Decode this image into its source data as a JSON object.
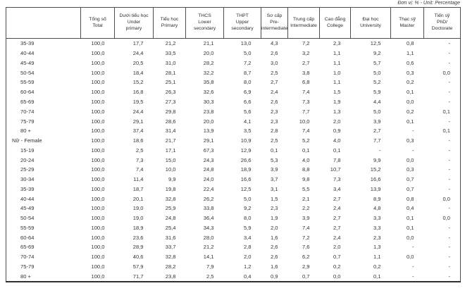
{
  "unit_note": "Đơn vị: % - Unit: Percentage",
  "table": {
    "corner_label": "",
    "columns": [
      {
        "vi": "Tổng số",
        "en": "Total"
      },
      {
        "vi": "Dưới tiểu học",
        "en": "Under primary"
      },
      {
        "vi": "Tiểu học",
        "en": "Primary"
      },
      {
        "vi": "THCS",
        "en": "Lower secondary"
      },
      {
        "vi": "THPT",
        "en": "Upper secondary"
      },
      {
        "vi": "Sơ cấp",
        "en": "Pre-intermediate"
      },
      {
        "vi": "Trung cấp",
        "en": "Intermediate"
      },
      {
        "vi": "Cao đẳng",
        "en": "College"
      },
      {
        "vi": "Đại học",
        "en": "University"
      },
      {
        "vi": "Thạc sỹ",
        "en": "Master"
      },
      {
        "vi": "Tiến sỹ",
        "en": "PhD/ Doctorate"
      }
    ],
    "rows": [
      {
        "label": "35-39",
        "values": [
          "100,0",
          "17,7",
          "21,2",
          "21,1",
          "13,0",
          "4,3",
          "7,2",
          "2,3",
          "12,5",
          "0,8",
          "-"
        ]
      },
      {
        "label": "40-44",
        "values": [
          "100,0",
          "24,4",
          "33,5",
          "20,0",
          "5,0",
          "2,6",
          "3,2",
          "1,1",
          "9,2",
          "1,1",
          "-"
        ]
      },
      {
        "label": "45-49",
        "values": [
          "100,0",
          "20,5",
          "31,0",
          "28,2",
          "7,2",
          "3,0",
          "2,7",
          "1,1",
          "5,7",
          "0,6",
          "-"
        ]
      },
      {
        "label": "50-54",
        "values": [
          "100,0",
          "18,4",
          "28,1",
          "32,2",
          "8,7",
          "2,5",
          "3,8",
          "1,0",
          "5,0",
          "0,3",
          "0,0"
        ]
      },
      {
        "label": "55-59",
        "values": [
          "100,0",
          "15,2",
          "25,1",
          "35,8",
          "8,0",
          "2,7",
          "6,8",
          "1,1",
          "5,2",
          "0,2",
          "-"
        ]
      },
      {
        "label": "60-64",
        "values": [
          "100,0",
          "16,8",
          "26,3",
          "32,6",
          "6,9",
          "2,4",
          "7,4",
          "1,5",
          "5,9",
          "0,1",
          "-"
        ]
      },
      {
        "label": "65-69",
        "values": [
          "100,0",
          "19,5",
          "27,3",
          "30,3",
          "6,6",
          "2,6",
          "7,3",
          "1,9",
          "4,4",
          "0,0",
          "-"
        ]
      },
      {
        "label": "70-74",
        "values": [
          "100,0",
          "24,4",
          "29,8",
          "23,8",
          "5,6",
          "2,3",
          "7,7",
          "1,3",
          "5,0",
          "0,2",
          "0,1"
        ]
      },
      {
        "label": "75-79",
        "values": [
          "100,0",
          "29,1",
          "28,6",
          "20,0",
          "4,1",
          "2,3",
          "10,0",
          "2,0",
          "3,9",
          "0,1",
          "-"
        ]
      },
      {
        "label": "80 +",
        "values": [
          "100,0",
          "37,4",
          "31,4",
          "13,9",
          "3,5",
          "2,8",
          "7,4",
          "0,9",
          "2,7",
          "-",
          "0,1"
        ]
      },
      {
        "label": "Nữ - Female",
        "section": true,
        "values": [
          "100,0",
          "18,6",
          "21,7",
          "29,1",
          "10,9",
          "2,5",
          "5,2",
          "4,0",
          "7,7",
          "0,3",
          "-"
        ]
      },
      {
        "label": "15-19",
        "values": [
          "100,0",
          "2,5",
          "17,1",
          "67,3",
          "12,9",
          "0,1",
          "0,1",
          "0,1",
          "-",
          "-",
          "-"
        ]
      },
      {
        "label": "20-24",
        "values": [
          "100,0",
          "7,3",
          "15,0",
          "24,3",
          "26,6",
          "5,3",
          "4,0",
          "7,8",
          "9,9",
          "0,0",
          "-"
        ]
      },
      {
        "label": "25-29",
        "values": [
          "100,0",
          "7,4",
          "10,0",
          "24,8",
          "18,9",
          "3,9",
          "8,8",
          "10,7",
          "15,2",
          "0,3",
          "-"
        ]
      },
      {
        "label": "30-34",
        "values": [
          "100,0",
          "11,4",
          "9,9",
          "24,0",
          "16,6",
          "3,7",
          "9,8",
          "7,3",
          "16,6",
          "0,7",
          "-"
        ]
      },
      {
        "label": "35-39",
        "values": [
          "100,0",
          "18,7",
          "19,8",
          "22,4",
          "12,5",
          "3,1",
          "5,5",
          "3,4",
          "13,9",
          "0,7",
          "-"
        ]
      },
      {
        "label": "40-44",
        "values": [
          "100,0",
          "20,1",
          "32,8",
          "26,2",
          "5,0",
          "1,5",
          "2,1",
          "2,7",
          "8,9",
          "0,8",
          "0,0"
        ]
      },
      {
        "label": "45-49",
        "values": [
          "100,0",
          "19,0",
          "25,9",
          "33,8",
          "9,2",
          "2,3",
          "2,2",
          "2,4",
          "4,8",
          "0,4",
          "-"
        ]
      },
      {
        "label": "50-54",
        "values": [
          "100,0",
          "19,0",
          "24,8",
          "36,4",
          "8,0",
          "1,9",
          "3,9",
          "2,7",
          "3,3",
          "0,1",
          "0,0"
        ]
      },
      {
        "label": "55-59",
        "values": [
          "100,0",
          "18,9",
          "25,4",
          "34,3",
          "5,9",
          "2,0",
          "7,4",
          "2,7",
          "3,3",
          "0,1",
          "-"
        ]
      },
      {
        "label": "60-64",
        "values": [
          "100,0",
          "23,6",
          "31,6",
          "28,0",
          "3,4",
          "1,6",
          "7,2",
          "2,4",
          "2,3",
          "0,0",
          "-"
        ]
      },
      {
        "label": "65-69",
        "values": [
          "100,0",
          "28,9",
          "33,7",
          "21,2",
          "2,8",
          "2,6",
          "7,6",
          "2,0",
          "1,3",
          "-",
          "-"
        ]
      },
      {
        "label": "70-74",
        "values": [
          "100,0",
          "40,6",
          "32,8",
          "14,1",
          "2,0",
          "2,6",
          "6,2",
          "0,7",
          "1,1",
          "0,0",
          "-"
        ]
      },
      {
        "label": "75-79",
        "values": [
          "100,0",
          "57,9",
          "28,2",
          "7,9",
          "1,2",
          "1,6",
          "2,9",
          "0,2",
          "0,2",
          "-",
          "-"
        ]
      },
      {
        "label": "80 +",
        "values": [
          "100,0",
          "71,7",
          "23,8",
          "2,5",
          "0,4",
          "0,9",
          "0,7",
          "0,0",
          "0,1",
          "-",
          "-"
        ]
      }
    ]
  }
}
